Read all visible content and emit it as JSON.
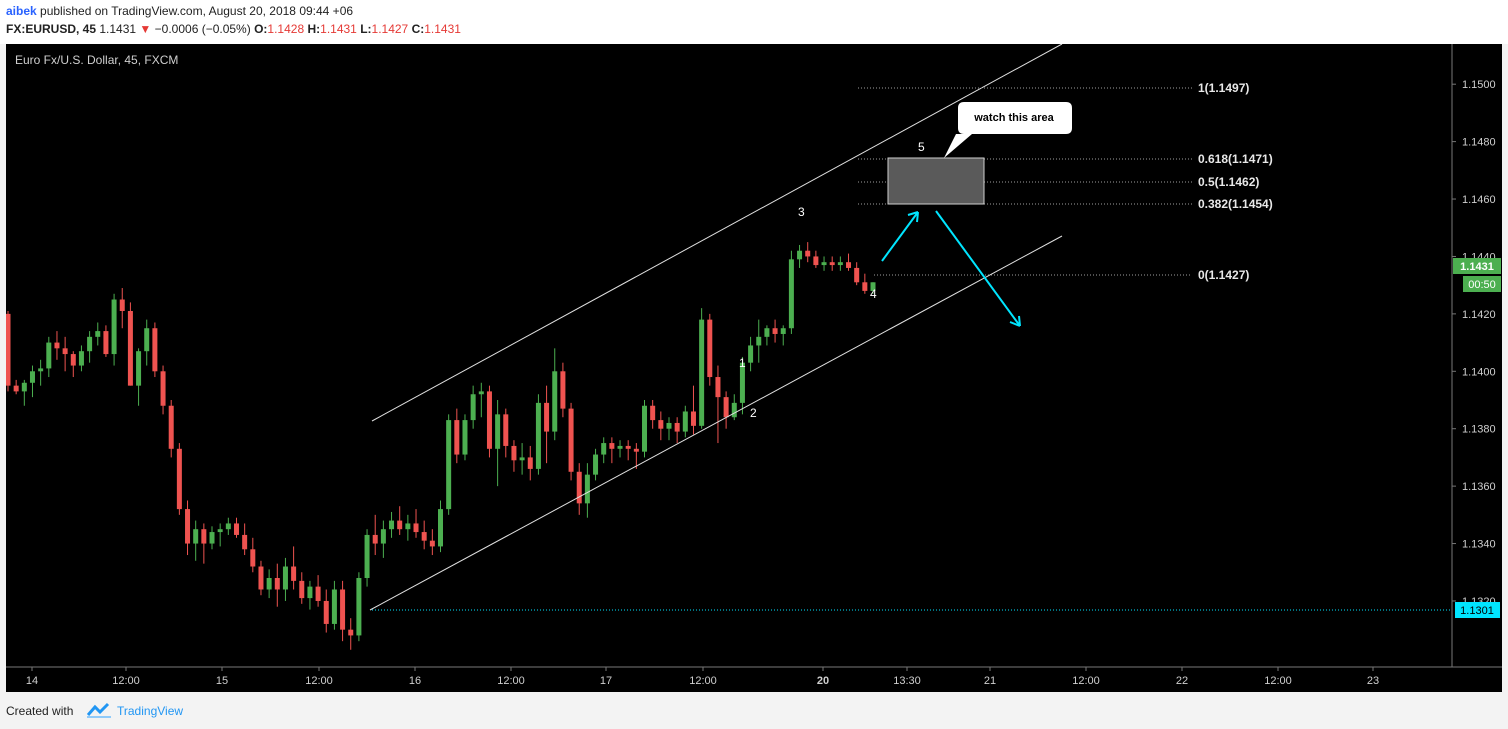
{
  "header": {
    "author": "aibek",
    "published_text": " published on TradingView.com, August 20, 2018 09:44 +06",
    "symbol": "FX:EURUSD, 45",
    "last": "1.1431",
    "change_arrow": "▼",
    "change": "−0.0006 (−0.05%)",
    "o_label": "O:",
    "o_value": "1.1428",
    "h_label": "H:",
    "h_value": "1.1431",
    "l_label": "L:",
    "l_value": "1.1427",
    "c_label": "C:",
    "c_value": "1.1431"
  },
  "chart_title": "Euro Fx/U.S. Dollar, 45, FXCM",
  "footer": {
    "created_with": "Created with",
    "brand": "TradingView"
  },
  "chart_data": {
    "type": "candlestick",
    "y_ticks": [
      "1.1320",
      "1.1340",
      "1.1360",
      "1.1380",
      "1.1400",
      "1.1420",
      "1.1440",
      "1.1460",
      "1.1480",
      "1.1500"
    ],
    "x_ticks": [
      "14",
      "12:00",
      "15",
      "12:00",
      "16",
      "12:00",
      "17",
      "12:00",
      "20",
      "13:30",
      "21",
      "12:00",
      "22",
      "12:00",
      "23"
    ],
    "ylim": [
      1.1297,
      1.1514
    ],
    "last_price_label": "1.1431",
    "countdown_label": "00:50",
    "low_line_label": "1.1301",
    "fib_levels": [
      {
        "label": "1(1.1497)",
        "value": 1.1497
      },
      {
        "label": "0.618(1.1471)",
        "value": 1.1471
      },
      {
        "label": "0.5(1.1462)",
        "value": 1.1462
      },
      {
        "label": "0.382(1.1454)",
        "value": 1.1454
      },
      {
        "label": "0(1.1427)",
        "value": 1.1427
      }
    ],
    "wave_labels": [
      "1",
      "2",
      "3",
      "4",
      "5"
    ],
    "callout": "watch this area",
    "colors": {
      "up": "#4caf50",
      "down": "#ef5350",
      "cyan": "#00e5ff",
      "axis_text": "#cfcfcf",
      "bg": "#000000"
    },
    "candles": [
      [
        1.142,
        1.1421,
        1.1393,
        1.1395
      ],
      [
        1.1395,
        1.1397,
        1.1392,
        1.1393
      ],
      [
        1.1393,
        1.1397,
        1.1388,
        1.1396
      ],
      [
        1.1396,
        1.1402,
        1.1391,
        1.14
      ],
      [
        1.14,
        1.1404,
        1.1395,
        1.1401
      ],
      [
        1.1401,
        1.1412,
        1.1398,
        1.141
      ],
      [
        1.141,
        1.1414,
        1.1404,
        1.1408
      ],
      [
        1.1408,
        1.1412,
        1.14,
        1.1406
      ],
      [
        1.1406,
        1.1407,
        1.1398,
        1.1402
      ],
      [
        1.1402,
        1.1409,
        1.14,
        1.1407
      ],
      [
        1.1407,
        1.1414,
        1.1403,
        1.1412
      ],
      [
        1.1412,
        1.1417,
        1.1409,
        1.1414
      ],
      [
        1.1414,
        1.1416,
        1.1405,
        1.1406
      ],
      [
        1.1406,
        1.1427,
        1.1402,
        1.1425
      ],
      [
        1.1425,
        1.1429,
        1.1415,
        1.1421
      ],
      [
        1.1421,
        1.1424,
        1.1395,
        1.1395
      ],
      [
        1.1395,
        1.1408,
        1.1388,
        1.1407
      ],
      [
        1.1407,
        1.1418,
        1.1402,
        1.1415
      ],
      [
        1.1415,
        1.1417,
        1.1398,
        1.14
      ],
      [
        1.14,
        1.1402,
        1.1385,
        1.1388
      ],
      [
        1.1388,
        1.139,
        1.137,
        1.1373
      ],
      [
        1.1373,
        1.1375,
        1.135,
        1.1352
      ],
      [
        1.1352,
        1.1355,
        1.1336,
        1.134
      ],
      [
        1.134,
        1.1348,
        1.1334,
        1.1345
      ],
      [
        1.1345,
        1.1347,
        1.1333,
        1.134
      ],
      [
        1.134,
        1.1346,
        1.1338,
        1.1344
      ],
      [
        1.1344,
        1.1347,
        1.1339,
        1.1345
      ],
      [
        1.1345,
        1.1349,
        1.1343,
        1.1347
      ],
      [
        1.1347,
        1.1349,
        1.1342,
        1.1343
      ],
      [
        1.1343,
        1.1347,
        1.1336,
        1.1338
      ],
      [
        1.1338,
        1.1342,
        1.133,
        1.1332
      ],
      [
        1.1332,
        1.1334,
        1.1322,
        1.1324
      ],
      [
        1.1324,
        1.1331,
        1.1321,
        1.1328
      ],
      [
        1.1328,
        1.1333,
        1.1318,
        1.1324
      ],
      [
        1.1324,
        1.1335,
        1.132,
        1.1332
      ],
      [
        1.1332,
        1.1339,
        1.1324,
        1.1327
      ],
      [
        1.1327,
        1.133,
        1.1319,
        1.1321
      ],
      [
        1.1321,
        1.1327,
        1.1317,
        1.1325
      ],
      [
        1.1325,
        1.1329,
        1.1318,
        1.132
      ],
      [
        1.132,
        1.1324,
        1.1309,
        1.1312
      ],
      [
        1.1312,
        1.1327,
        1.131,
        1.1324
      ],
      [
        1.1324,
        1.1327,
        1.1306,
        1.131
      ],
      [
        1.131,
        1.1314,
        1.1303,
        1.1308
      ],
      [
        1.1308,
        1.133,
        1.1306,
        1.1328
      ],
      [
        1.1328,
        1.1345,
        1.1325,
        1.1343
      ],
      [
        1.1343,
        1.135,
        1.1336,
        1.134
      ],
      [
        1.134,
        1.1348,
        1.1335,
        1.1345
      ],
      [
        1.1345,
        1.1351,
        1.1342,
        1.1348
      ],
      [
        1.1348,
        1.1353,
        1.1343,
        1.1345
      ],
      [
        1.1345,
        1.135,
        1.1341,
        1.1347
      ],
      [
        1.1347,
        1.1352,
        1.1342,
        1.1344
      ],
      [
        1.1344,
        1.1348,
        1.1338,
        1.1341
      ],
      [
        1.1341,
        1.1345,
        1.1336,
        1.1339
      ],
      [
        1.1339,
        1.1355,
        1.1337,
        1.1352
      ],
      [
        1.1352,
        1.1385,
        1.135,
        1.1383
      ],
      [
        1.1383,
        1.1387,
        1.1368,
        1.1371
      ],
      [
        1.1371,
        1.1385,
        1.1369,
        1.1383
      ],
      [
        1.1383,
        1.1395,
        1.138,
        1.1392
      ],
      [
        1.1392,
        1.1396,
        1.1384,
        1.1393
      ],
      [
        1.1393,
        1.1395,
        1.137,
        1.1373
      ],
      [
        1.1373,
        1.139,
        1.136,
        1.1385
      ],
      [
        1.1385,
        1.1387,
        1.137,
        1.1374
      ],
      [
        1.1374,
        1.1376,
        1.1365,
        1.1369
      ],
      [
        1.1369,
        1.1375,
        1.1364,
        1.137
      ],
      [
        1.137,
        1.1374,
        1.1362,
        1.1366
      ],
      [
        1.1366,
        1.1392,
        1.1364,
        1.1389
      ],
      [
        1.1389,
        1.1395,
        1.1368,
        1.1379
      ],
      [
        1.1379,
        1.1408,
        1.1376,
        1.14
      ],
      [
        1.14,
        1.1403,
        1.1384,
        1.1387
      ],
      [
        1.1387,
        1.1389,
        1.1362,
        1.1365
      ],
      [
        1.1365,
        1.1368,
        1.135,
        1.1354
      ],
      [
        1.1354,
        1.1368,
        1.1349,
        1.1364
      ],
      [
        1.1364,
        1.1373,
        1.1362,
        1.1371
      ],
      [
        1.1371,
        1.1377,
        1.1368,
        1.1375
      ],
      [
        1.1375,
        1.1377,
        1.1368,
        1.1373
      ],
      [
        1.1373,
        1.1376,
        1.137,
        1.1374
      ],
      [
        1.1374,
        1.1376,
        1.1369,
        1.1373
      ],
      [
        1.1373,
        1.1375,
        1.1366,
        1.1372
      ],
      [
        1.1372,
        1.139,
        1.137,
        1.1388
      ],
      [
        1.1388,
        1.139,
        1.138,
        1.1383
      ],
      [
        1.1383,
        1.1386,
        1.1376,
        1.138
      ],
      [
        1.138,
        1.1384,
        1.1376,
        1.1382
      ],
      [
        1.1382,
        1.1384,
        1.1375,
        1.1379
      ],
      [
        1.1379,
        1.1388,
        1.1377,
        1.1386
      ],
      [
        1.1386,
        1.1395,
        1.1378,
        1.1381
      ],
      [
        1.1381,
        1.1422,
        1.138,
        1.1418
      ],
      [
        1.1418,
        1.142,
        1.1395,
        1.1398
      ],
      [
        1.1398,
        1.1402,
        1.1375,
        1.1391
      ],
      [
        1.1391,
        1.1393,
        1.138,
        1.1384
      ],
      [
        1.1384,
        1.1392,
        1.1383,
        1.1389
      ],
      [
        1.1389,
        1.1405,
        1.1385,
        1.1403
      ],
      [
        1.1403,
        1.1412,
        1.14,
        1.1409
      ],
      [
        1.1409,
        1.1418,
        1.1403,
        1.1412
      ],
      [
        1.1412,
        1.1416,
        1.1409,
        1.1415
      ],
      [
        1.1415,
        1.1418,
        1.141,
        1.1413
      ],
      [
        1.1413,
        1.1416,
        1.1409,
        1.1415
      ],
      [
        1.1415,
        1.1442,
        1.1413,
        1.1439
      ],
      [
        1.1439,
        1.1444,
        1.1436,
        1.1442
      ],
      [
        1.1442,
        1.1445,
        1.1438,
        1.144
      ],
      [
        1.144,
        1.1442,
        1.1436,
        1.1437
      ],
      [
        1.1437,
        1.144,
        1.1435,
        1.1438
      ],
      [
        1.1438,
        1.144,
        1.1435,
        1.1437
      ],
      [
        1.1437,
        1.144,
        1.1435,
        1.1438
      ],
      [
        1.1438,
        1.1441,
        1.1435,
        1.1436
      ],
      [
        1.1436,
        1.1438,
        1.143,
        1.1431
      ],
      [
        1.1431,
        1.1434,
        1.1427,
        1.1428
      ],
      [
        1.1428,
        1.1431,
        1.1427,
        1.1431
      ]
    ]
  }
}
